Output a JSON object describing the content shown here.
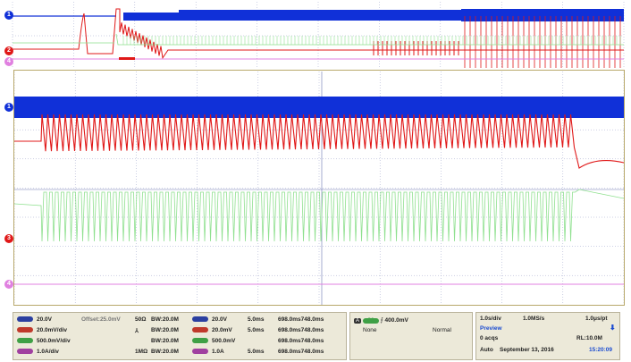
{
  "colors": {
    "ch1": "#1030d8",
    "ch2": "#e01818",
    "ch3": "#8fe08f",
    "ch4": "#e080e0",
    "grid": "#9aa0c8",
    "panel": "#ece9d9"
  },
  "markers": {
    "ch1": "1",
    "ch2": "2",
    "ch3": "3",
    "ch4": "4",
    "t_marker": "T"
  },
  "channels": [
    {
      "badge": "C1",
      "scale": "20.0V",
      "extra1": "Offset:25.0mV",
      "imp": "50Ω",
      "bw": "BW:20.0M",
      "zbadge": "Z1C1",
      "zscale": "20.0V",
      "zt": "5.0ms",
      "zwin": "698.0ms748.0ms",
      "color": "#2b3fa0"
    },
    {
      "badge": "C2",
      "scale": "20.0mV/div",
      "extra1": "",
      "imp": "⅄",
      "bw": "BW:20.0M",
      "zbadge": "Z1C2",
      "zscale": "20.0mV",
      "zt": "5.0ms",
      "zwin": "698.0ms748.0ms",
      "color": "#c0392b"
    },
    {
      "badge": "C3",
      "scale": "500.0mV/div",
      "extra1": "",
      "imp": "",
      "bw": "BW:20.0M",
      "zbadge": "Z1C3",
      "zscale": "500.0mV",
      "zt": "",
      "zwin": "698.0ms748.0ms",
      "color": "#3fa046"
    },
    {
      "badge": "C4",
      "scale": "1.0A/div",
      "extra1": "",
      "imp": "1MΩ",
      "bw": "BW:20.0M",
      "zbadge": "Z1C4",
      "zscale": "1.0A",
      "zt": "5.0ms",
      "zwin": "698.0ms748.0ms",
      "color": "#a040a0"
    }
  ],
  "trigger": {
    "badge_a": "A",
    "badge_ch": "C3",
    "slope": "⨍",
    "level": "400.0mV",
    "mode_left": "None",
    "mode_right": "Normal"
  },
  "acquisition": {
    "timebase": "1.0s/div",
    "sample_rate": "1.0MS/s",
    "resolution": "1.0μs/pt",
    "preview": "Preview",
    "acqs": "0 acqs",
    "record_length": "RL:10.0M",
    "mode": "Auto",
    "date": "September 13, 2016",
    "time": "15:20:09"
  }
}
